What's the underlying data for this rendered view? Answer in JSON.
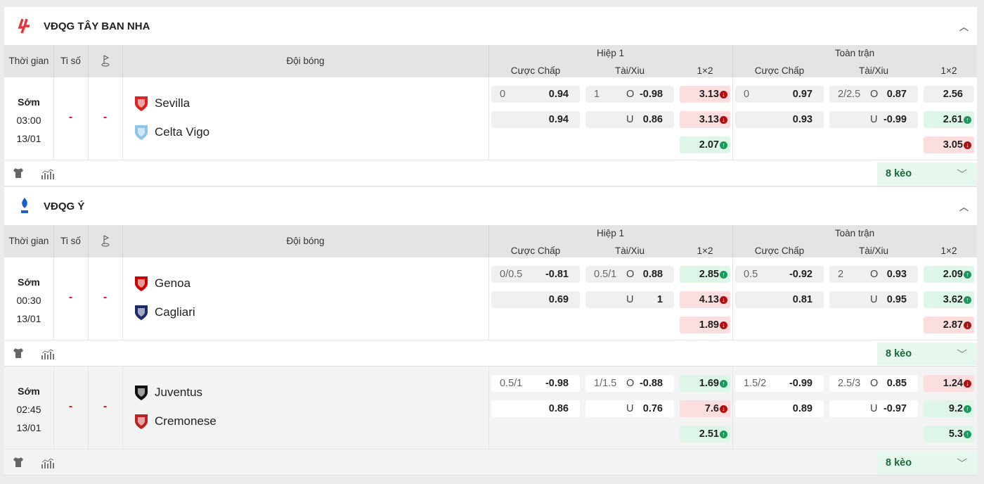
{
  "columns": {
    "time": "Thời gian",
    "score": "Ti số",
    "team": "Đội bóng",
    "h1": "Hiệp 1",
    "ft": "Toàn trận",
    "handicap": "Cược Chấp",
    "ou": "Tài/Xiu",
    "x12": "1×2"
  },
  "colors": {
    "red": "#fddede",
    "green": "#ddf6e8",
    "up": "#1a9a5a",
    "down": "#b01010"
  },
  "leagues": [
    {
      "name": "VĐQG TÂY BAN NHA",
      "logo": "laliga-logo",
      "more": "8 kèo",
      "matches": [
        {
          "status": "Sớm",
          "time": "03:00",
          "date": "13/01",
          "score": "-",
          "corner": "-",
          "home": "Sevilla",
          "away": "Celta Vigo",
          "h1": {
            "hc": {
              "line": "0",
              "home": "0.94",
              "away": "0.94"
            },
            "ou": {
              "line": "1",
              "over": "-0.98",
              "under": "0.86"
            },
            "x12": [
              {
                "v": "3.13",
                "t": "down"
              },
              {
                "v": "3.13",
                "t": "down"
              },
              {
                "v": "2.07",
                "t": "up"
              }
            ]
          },
          "ft": {
            "hc": {
              "line": "0",
              "home": "0.97",
              "away": "0.93"
            },
            "ou": {
              "line": "2/2.5",
              "over": "0.87",
              "under": "-0.99"
            },
            "x12": [
              {
                "v": "2.56",
                "t": "none"
              },
              {
                "v": "2.61",
                "t": "up"
              },
              {
                "v": "3.05",
                "t": "down"
              }
            ]
          }
        }
      ]
    },
    {
      "name": "VĐQG Ý",
      "logo": "serie-a-logo",
      "more": "8 kèo",
      "matches": [
        {
          "status": "Sớm",
          "time": "00:30",
          "date": "13/01",
          "score": "-",
          "corner": "-",
          "home": "Genoa",
          "away": "Cagliari",
          "h1": {
            "hc": {
              "line": "0/0.5",
              "home": "-0.81",
              "away": "0.69"
            },
            "ou": {
              "line": "0.5/1",
              "over": "0.88",
              "under": "1"
            },
            "x12": [
              {
                "v": "2.85",
                "t": "up"
              },
              {
                "v": "4.13",
                "t": "down"
              },
              {
                "v": "1.89",
                "t": "down"
              }
            ]
          },
          "ft": {
            "hc": {
              "line": "0.5",
              "home": "-0.92",
              "away": "0.81"
            },
            "ou": {
              "line": "2",
              "over": "0.93",
              "under": "0.95"
            },
            "x12": [
              {
                "v": "2.09",
                "t": "up"
              },
              {
                "v": "3.62",
                "t": "up"
              },
              {
                "v": "2.87",
                "t": "down"
              }
            ]
          }
        },
        {
          "status": "Sớm",
          "time": "02:45",
          "date": "13/01",
          "score": "-",
          "corner": "-",
          "home": "Juventus",
          "away": "Cremonese",
          "h1": {
            "hc": {
              "line": "0.5/1",
              "home": "-0.98",
              "away": "0.86"
            },
            "ou": {
              "line": "1/1.5",
              "over": "-0.88",
              "under": "0.76"
            },
            "x12": [
              {
                "v": "1.69",
                "t": "up"
              },
              {
                "v": "7.6",
                "t": "down"
              },
              {
                "v": "2.51",
                "t": "up"
              }
            ]
          },
          "ft": {
            "hc": {
              "line": "1.5/2",
              "home": "-0.99",
              "away": "0.89"
            },
            "ou": {
              "line": "2.5/3",
              "over": "0.85",
              "under": "-0.97"
            },
            "x12": [
              {
                "v": "1.24",
                "t": "down"
              },
              {
                "v": "9.2",
                "t": "up"
              },
              {
                "v": "5.3",
                "t": "up"
              }
            ]
          }
        }
      ]
    }
  ],
  "labels": {
    "over": "O",
    "under": "U"
  }
}
